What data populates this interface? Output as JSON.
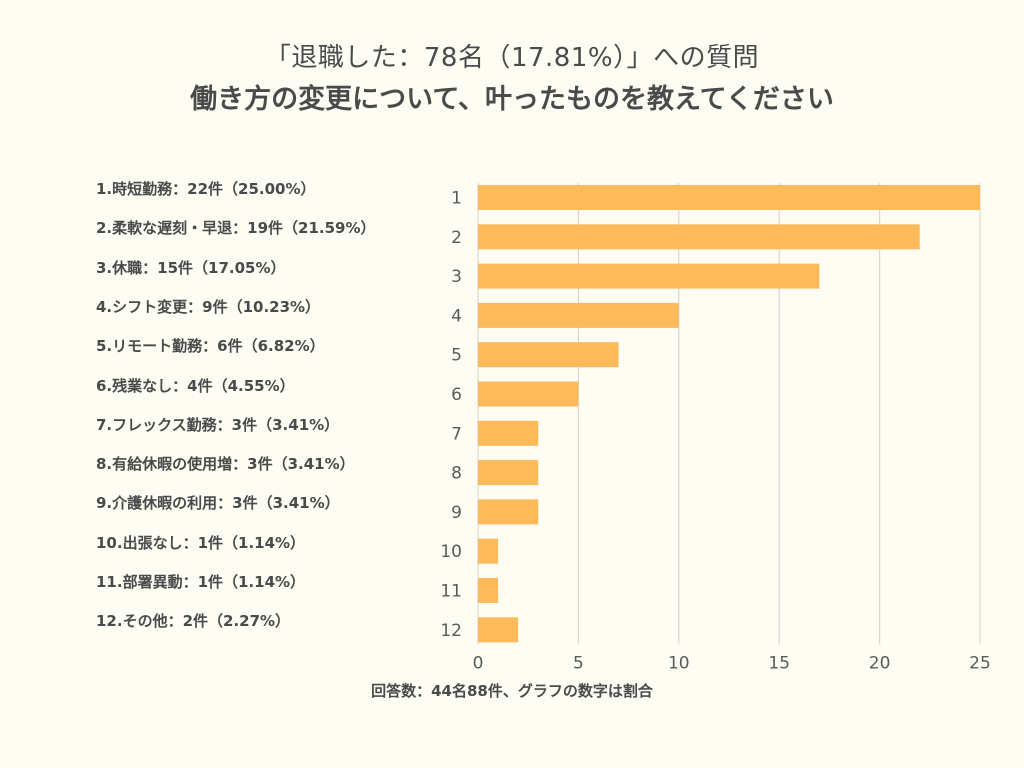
{
  "header": {
    "subtitle": "「退職した：78名（17.81%）」への質問",
    "title": "働き方の変更について、叶ったものを教えてください"
  },
  "legend_items": [
    "1.時短勤務：22件（25.00%）",
    "2.柔軟な遅刻・早退：19件（21.59%）",
    "3.休職：15件（17.05%）",
    "4.シフト変更：9件（10.23%）",
    "5.リモート勤務：6件（6.82%）",
    "6.残業なし：4件（4.55%）",
    "7.フレックス勤務：3件（3.41%）",
    "8.有給休暇の使用増：3件（3.41%）",
    "9.介護休暇の利用：3件（3.41%）",
    "10.出張なし：1件（1.14%）",
    "11.部署異動：1件（1.14%）",
    "12.その他：2件（2.27%）"
  ],
  "footer": "回答数：44名88件、グラフの数字は割合",
  "colors": {
    "bar": "#fdba5b",
    "grid": "#d9d9d0",
    "text": "#4a4a4a",
    "background": "#fdfdf4"
  },
  "chart_data": {
    "type": "bar",
    "orientation": "horizontal",
    "title": "働き方の変更について、叶ったものを教えてください",
    "subtitle": "「退職した：78名（17.81%）」への質問",
    "categories": [
      "1",
      "2",
      "3",
      "4",
      "5",
      "6",
      "7",
      "8",
      "9",
      "10",
      "11",
      "12"
    ],
    "values": [
      25,
      22,
      17,
      10,
      7,
      5,
      3,
      3,
      3,
      1,
      1,
      2
    ],
    "xlabel": "",
    "ylabel": "",
    "xlim": [
      0,
      25
    ],
    "xticks": [
      0,
      5,
      10,
      15,
      20,
      25
    ],
    "grid": "vertical",
    "legend": "left",
    "note": "回答数：44名88件、グラフの数字は割合"
  }
}
